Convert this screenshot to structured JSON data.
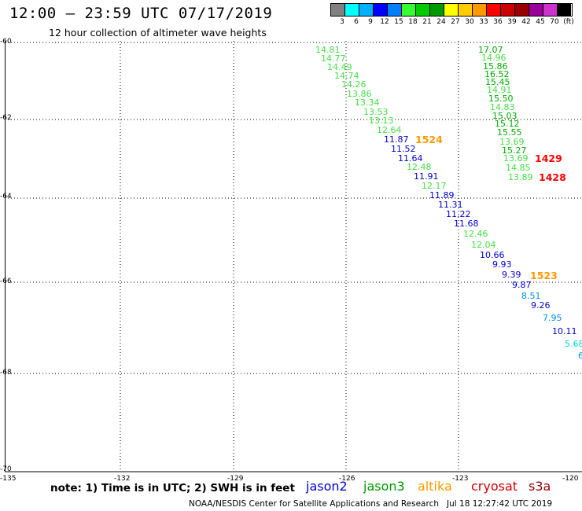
{
  "header": {
    "title": "12:00 – 23:59 UTC 07/17/2019",
    "subtitle": "12 hour collection of altimeter wave heights"
  },
  "color_scale": {
    "colors": [
      "#808080",
      "#00ffff",
      "#00b0ff",
      "#0000ff",
      "#0080ff",
      "#33ff33",
      "#00cc00",
      "#009900",
      "#ffff00",
      "#ffcc00",
      "#ff9900",
      "#ff0000",
      "#cc0000",
      "#990000",
      "#990099",
      "#cc33cc",
      "#000000"
    ],
    "labels": [
      "3",
      "6",
      "9",
      "12",
      "15",
      "18",
      "21",
      "24",
      "27",
      "30",
      "33",
      "36",
      "39",
      "42",
      "45",
      "70",
      "(ft)"
    ]
  },
  "axes": {
    "lat_labels": [
      "-60",
      "-62",
      "-64",
      "-66",
      "-68",
      "-70"
    ],
    "lon_labels": [
      "-135",
      "-132",
      "-129",
      "-126",
      "-123",
      "-120"
    ]
  },
  "wave_tracks": {
    "track_a": [
      "14.81",
      "14.77",
      "14.49",
      "14.74",
      "14.26",
      "13.86",
      "13.34",
      "13.53",
      "13.13",
      "12.64",
      "11.87",
      "11.52",
      "11.64",
      "12.48",
      "11.91",
      "12.17",
      "11.89",
      "11.31",
      "11.22",
      "11.68",
      "12.46",
      "12.04",
      "10.66",
      "9.93",
      "9.39",
      "9.87",
      "8.51",
      "9.26",
      "7.95",
      "10.11",
      "5.68",
      "6"
    ],
    "track_b": [
      "17.07",
      "14.96",
      "15.86",
      "16.52",
      "15.45",
      "14.91",
      "15.50",
      "14.83",
      "15.03",
      "15.12",
      "15.55",
      "13.69",
      "15.27",
      "13.69",
      "14.85",
      "13.89"
    ]
  },
  "pass_labels": [
    "1524",
    "1523",
    "1429",
    "1428"
  ],
  "footer": {
    "note": "note: 1) Time is in UTC; 2) SWH is in feet",
    "satellites": [
      {
        "name": "jason2",
        "color": "#0000cc"
      },
      {
        "name": "jason3",
        "color": "#009900"
      },
      {
        "name": "altika",
        "color": "#ff9900"
      },
      {
        "name": "cryosat",
        "color": "#cc0000"
      },
      {
        "name": "s3a",
        "color": "#990000"
      }
    ],
    "credit": "NOAA/NESDIS Center for Satellite Applications and Research",
    "timestamp": "Jul 18 12:27:42 UTC 2019"
  }
}
